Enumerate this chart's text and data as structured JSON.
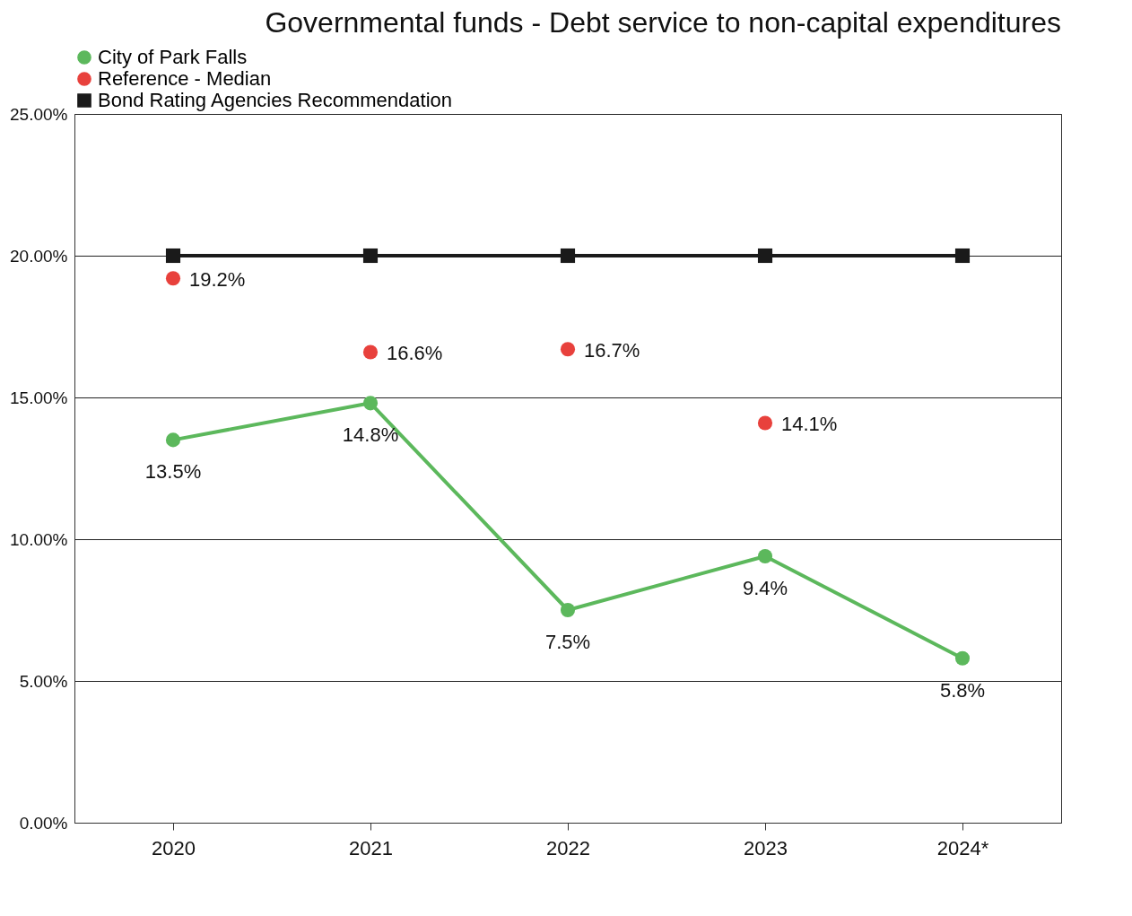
{
  "chart_data": {
    "type": "line",
    "title": "Governmental funds - Debt service to non-capital expenditures",
    "categories": [
      "2020",
      "2021",
      "2022",
      "2023",
      "2024*"
    ],
    "series": [
      {
        "name": "City of Park Falls",
        "type": "line",
        "marker": "circle",
        "color": "#5cb85c",
        "values": [
          13.5,
          14.8,
          7.5,
          9.4,
          5.8
        ],
        "value_labels": [
          "13.5%",
          "14.8%",
          "7.5%",
          "9.4%",
          "5.8%"
        ]
      },
      {
        "name": "Reference - Median",
        "type": "scatter",
        "marker": "circle",
        "color": "#e8413c",
        "values": [
          19.2,
          16.6,
          16.7,
          14.1,
          null
        ],
        "value_labels": [
          "19.2%",
          "16.6%",
          "16.7%",
          "14.1%",
          null
        ]
      },
      {
        "name": "Bond Rating Agencies Recommendation",
        "type": "line",
        "marker": "square",
        "color": "#1a1a1a",
        "values": [
          20,
          20,
          20,
          20,
          20
        ]
      }
    ],
    "ylim": [
      0,
      25
    ],
    "yticks": [
      {
        "value": 0,
        "label": "0.00%"
      },
      {
        "value": 5,
        "label": "5.00%"
      },
      {
        "value": 10,
        "label": "10.00%"
      },
      {
        "value": 15,
        "label": "15.00%"
      },
      {
        "value": 20,
        "label": "20.00%"
      },
      {
        "value": 25,
        "label": "25.00%"
      }
    ],
    "grid": "y",
    "legend": "top"
  }
}
